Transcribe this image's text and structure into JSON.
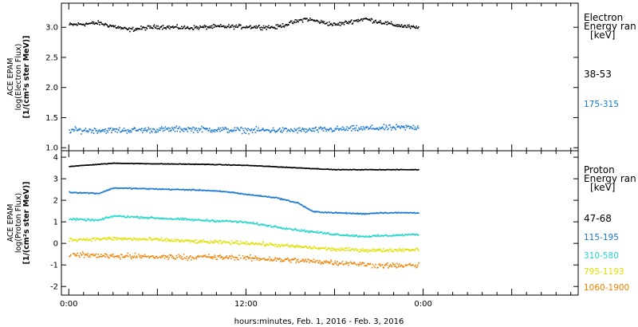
{
  "xlabel": "hours:minutes, Feb.  1, 2016 - Feb.  3, 2016",
  "x_ticks": [
    "0:00",
    "12:00",
    "0:00"
  ],
  "x_tick_hours": [
    0,
    12,
    24
  ],
  "x_range_hours": [
    -0.5,
    34.5
  ],
  "chart_data": [
    {
      "type": "scatter",
      "panel": "electron",
      "ylabel": [
        "ACE EPAM",
        "log(Electron Flux)",
        "[1/(cm²s ster MeV)]"
      ],
      "ylim": [
        0.95,
        3.4
      ],
      "yticks": [
        "1.0",
        "1.5",
        "2.0",
        "2.5",
        "3.0"
      ],
      "ytick_values": [
        1.0,
        1.5,
        2.0,
        2.5,
        3.0
      ],
      "legend_title": [
        "Electron",
        "Energy ran",
        "[keV]"
      ],
      "series": [
        {
          "name": "38-53",
          "color": "#000000",
          "data_range_hours": [
            0,
            23.7
          ],
          "x": [
            0,
            2,
            4,
            6,
            8,
            10,
            12,
            14,
            16,
            18,
            20,
            22,
            23.5
          ],
          "y": [
            3.05,
            3.08,
            2.97,
            3.02,
            3.0,
            3.02,
            3.02,
            3.01,
            3.15,
            3.05,
            3.15,
            3.05,
            3.0
          ]
        },
        {
          "name": "175-315",
          "color": "#1a78d4",
          "data_range_hours": [
            0,
            23.7
          ],
          "x": [
            0,
            4,
            8,
            12,
            16,
            20,
            23.5
          ],
          "y": [
            1.3,
            1.3,
            1.32,
            1.3,
            1.3,
            1.33,
            1.35
          ]
        }
      ]
    },
    {
      "type": "scatter",
      "panel": "proton",
      "ylabel": [
        "ACE EPAM",
        "log(Proton Flux)",
        "[1/(cm²s ster MeV)]"
      ],
      "ylim": [
        -2.4,
        4.3
      ],
      "yticks": [
        "-2",
        "-1",
        "0",
        "1",
        "2",
        "3",
        "4"
      ],
      "ytick_values": [
        -2,
        -1,
        0,
        1,
        2,
        3,
        4
      ],
      "legend_title": [
        "Proton",
        "Energy ran",
        "[keV]"
      ],
      "series": [
        {
          "name": "47-68",
          "color": "#000000",
          "data_range_hours": [
            0,
            23.7
          ],
          "x": [
            0,
            3,
            6,
            9,
            12,
            15,
            18,
            21,
            23.7
          ],
          "y": [
            3.6,
            3.75,
            3.72,
            3.7,
            3.65,
            3.55,
            3.45,
            3.45,
            3.45
          ]
        },
        {
          "name": "115-195",
          "color": "#1a78d4",
          "data_range_hours": [
            0,
            23.7
          ],
          "x": [
            0,
            2,
            3,
            6,
            9,
            11,
            12,
            14,
            15.5,
            16.5,
            18,
            20,
            21,
            23.7
          ],
          "y": [
            2.4,
            2.35,
            2.6,
            2.55,
            2.5,
            2.4,
            2.3,
            2.15,
            1.9,
            1.5,
            1.45,
            1.4,
            1.45,
            1.45
          ]
        },
        {
          "name": "310-580",
          "color": "#22d6cc",
          "data_range_hours": [
            0,
            23.7
          ],
          "x": [
            0,
            2,
            3,
            6,
            9,
            11,
            12,
            14,
            16,
            18,
            20,
            22,
            23.7
          ],
          "y": [
            1.15,
            1.1,
            1.3,
            1.2,
            1.1,
            1.05,
            1.0,
            0.8,
            0.6,
            0.45,
            0.35,
            0.4,
            0.45
          ]
        },
        {
          "name": "795-1193",
          "color": "#e0e000",
          "data_range_hours": [
            0,
            23.7
          ],
          "x": [
            0,
            3,
            6,
            9,
            12,
            15,
            18,
            21,
            23.7
          ],
          "y": [
            0.2,
            0.25,
            0.2,
            0.1,
            0.05,
            -0.1,
            -0.25,
            -0.3,
            -0.25
          ]
        },
        {
          "name": "1060-1900",
          "color": "#f08000",
          "data_range_hours": [
            0,
            23.7
          ],
          "x": [
            0,
            3,
            6,
            9,
            12,
            15,
            18,
            21,
            23.7
          ],
          "y": [
            -0.5,
            -0.55,
            -0.6,
            -0.6,
            -0.65,
            -0.75,
            -0.85,
            -1.0,
            -1.0
          ]
        }
      ]
    }
  ]
}
